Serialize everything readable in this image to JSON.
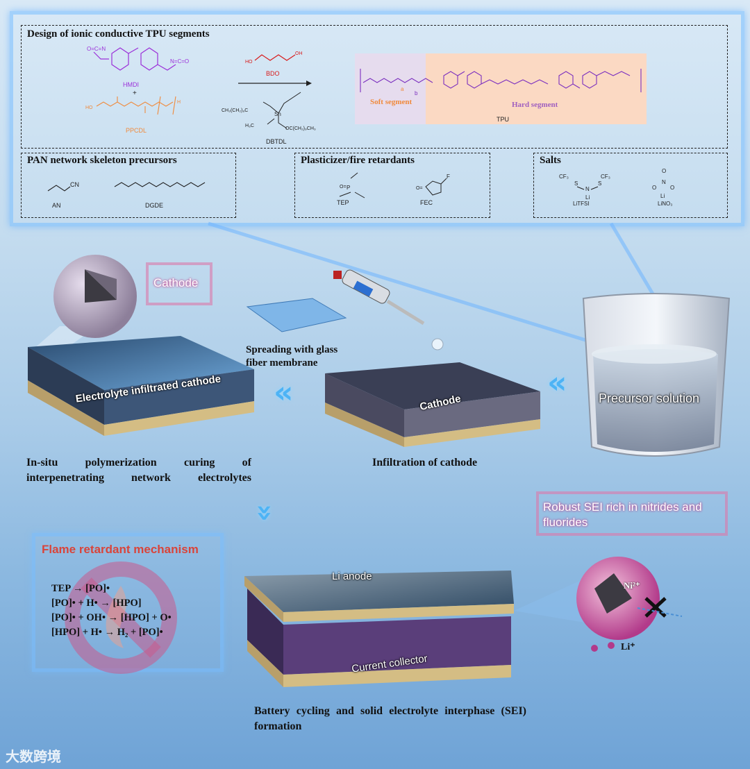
{
  "top_panel": {
    "tpu_title": "Design of ionic conductive TPU segments",
    "hmdi": "HMDI",
    "plus": "+",
    "ppcdl": "PPCDL",
    "bdo": "BDO",
    "dbtdl": "DBTDL",
    "soft_segment": "Soft segment",
    "hard_segment": "Hard segment",
    "tpu": "TPU",
    "pan_title": "PAN network skeleton precursors",
    "an": "AN",
    "dgde": "DGDE",
    "plast_title": "Plasticizer/fire retardants",
    "tep": "TEP",
    "fec": "FEC",
    "salts_title": "Salts",
    "litfsi": "LiTFSI",
    "lino3": "LiNO₃"
  },
  "middle": {
    "cathode_callout": "Cathode",
    "spreading": "Spreading with glass fiber membrane",
    "electrolyte_plate": "Electrolyte infiltrated cathode",
    "cathode_plate": "Cathode",
    "precursor": "Precursor solution",
    "caption_left": "In-situ polymerization curing of interpenetrating network electrolytes",
    "caption_mid": "Infiltration of cathode"
  },
  "bottom": {
    "flame_title": "Flame retardant mechanism",
    "eq1": "TEP → [PO]•",
    "eq2": "[PO]• + H• → [HPO]",
    "eq3": "[PO]• + OH• → [HPO] + O•",
    "eq4": "[HPO] + H• → H₂ + [PO]•",
    "li_anode": "Li anode",
    "current_collector": "Current collector",
    "sei_title": "Robust SEI rich in nitrides and fluorides",
    "ni": "Ni²⁺",
    "li": "Li⁺",
    "caption_bottom": "Battery cycling and solid electrolyte interphase (SEI) formation",
    "watermark": "大数跨境"
  },
  "colors": {
    "hmdi": "#9b30d9",
    "ppcdl": "#f08a3c",
    "bdo": "#d81b1b",
    "soft_bg": "#e6dcee",
    "hard_bg": "#fbd9c3",
    "tpu_chain": "#7b2fbf",
    "arrow": "#4db3f5",
    "flame": "#d9443a"
  }
}
